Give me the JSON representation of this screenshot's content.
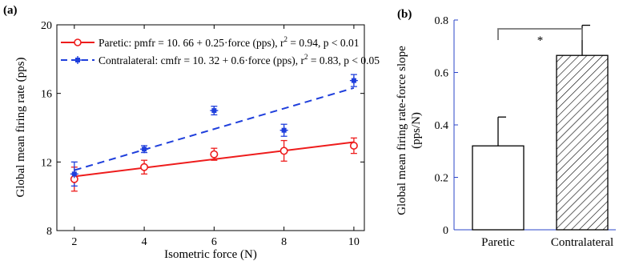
{
  "colors": {
    "paretic": "#ee1c1c",
    "contralateral": "#1f3fdc",
    "black": "#000000"
  },
  "chart_data": [
    {
      "type": "line",
      "panel_label": "(a)",
      "xlabel": "Isometric force (N)",
      "ylabel": "Global mean firing rate (pps)",
      "xlim": [
        1.5,
        10.3
      ],
      "ylim": [
        8,
        20
      ],
      "xticks": [
        2,
        4,
        6,
        8,
        10
      ],
      "yticks": [
        8,
        12,
        16,
        20
      ],
      "legend_position": "top-left",
      "series": [
        {
          "key": "paretic",
          "name": "Paretic: pmfr = 10. 66 + 0.25·force (pps), r² = 0.94, p < 0.01",
          "legend_text_pre": "Paretic: pmfr = 10. 66 + 0.25·force (pps), r",
          "legend_text_post": " = 0.94, p < 0.01",
          "marker": "circle",
          "line_style": "solid",
          "x": [
            2,
            4,
            6,
            8,
            10
          ],
          "y": [
            11.0,
            11.7,
            12.45,
            12.65,
            12.95
          ],
          "err": [
            0.7,
            0.4,
            0.35,
            0.6,
            0.45
          ],
          "fit": {
            "intercept": 10.66,
            "slope": 0.25
          }
        },
        {
          "key": "contralateral",
          "name": "Contralateral: cmfr = 10. 32 + 0.6·force (pps), r² = 0.83, p < 0.05",
          "legend_text_pre": "Contralateral: cmfr = 10. 32 + 0.6·force (pps), r",
          "legend_text_post": " = 0.83, p < 0.05",
          "marker": "asterisk",
          "line_style": "dashed",
          "x": [
            2,
            4,
            6,
            8,
            10
          ],
          "y": [
            11.3,
            12.75,
            15.0,
            13.85,
            16.75
          ],
          "err": [
            0.7,
            0.2,
            0.25,
            0.35,
            0.35
          ],
          "fit": {
            "intercept": 10.32,
            "slope": 0.6
          }
        }
      ]
    },
    {
      "type": "bar",
      "panel_label": "(b)",
      "ylabel_line1": "Global mean firing rate-force slope",
      "ylabel_line2": "(pps/N)",
      "categories": [
        "Paretic",
        "Contralateral"
      ],
      "values": [
        0.32,
        0.665
      ],
      "errors": [
        0.11,
        0.115
      ],
      "fills": [
        "white",
        "hatched"
      ],
      "ylim": [
        0,
        0.8
      ],
      "yticks": [
        0,
        0.2,
        0.4,
        0.6,
        0.8
      ],
      "ytick_labels": [
        "0",
        "0.2",
        "0.4",
        "0.6",
        "0.8"
      ],
      "significance": {
        "pair": [
          0,
          1
        ],
        "label": "*"
      }
    }
  ]
}
